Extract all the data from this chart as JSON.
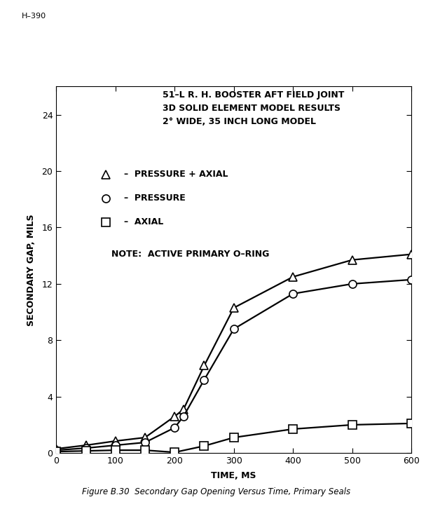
{
  "title_lines": [
    "51–L R. H. BOOSTER AFT FIELD JOINT",
    "3D SOLID ELEMENT MODEL RESULTS",
    "2° WIDE, 35 INCH LONG MODEL"
  ],
  "note": "NOTE:  ACTIVE PRIMARY O–RING",
  "xlabel": "TIME, MS",
  "ylabel": "SECONDARY GAP, MILS",
  "xlim": [
    0,
    600
  ],
  "ylim": [
    0,
    26
  ],
  "xticks": [
    0,
    100,
    200,
    300,
    400,
    500,
    600
  ],
  "yticks": [
    0,
    4,
    8,
    12,
    16,
    20,
    24
  ],
  "header": "H–390",
  "figure_caption": "Figure B.30  Secondary Gap Opening Versus Time, Primary Seals",
  "series": [
    {
      "label": "–  PRESSURE + AXIAL",
      "marker": "triangle",
      "x": [
        0,
        50,
        100,
        150,
        200,
        215,
        250,
        300,
        400,
        500,
        600
      ],
      "y": [
        0.3,
        0.55,
        0.85,
        1.1,
        2.6,
        3.1,
        6.2,
        10.3,
        12.5,
        13.7,
        14.1
      ]
    },
    {
      "label": "–  PRESSURE",
      "marker": "circle",
      "x": [
        0,
        50,
        100,
        150,
        200,
        215,
        250,
        300,
        400,
        500,
        600
      ],
      "y": [
        0.2,
        0.35,
        0.55,
        0.75,
        1.8,
        2.6,
        5.2,
        8.8,
        11.3,
        12.0,
        12.3
      ]
    },
    {
      "label": "–  AXIAL",
      "marker": "square",
      "x": [
        0,
        50,
        100,
        150,
        200,
        250,
        300,
        400,
        500,
        600
      ],
      "y": [
        0.1,
        0.15,
        0.2,
        0.2,
        0.05,
        0.5,
        1.1,
        1.7,
        2.0,
        2.1
      ]
    }
  ],
  "line_color": "black",
  "background_color": "white",
  "marker_size": 8,
  "linewidth": 1.6,
  "fontsize_title": 9,
  "fontsize_axis_label": 9,
  "fontsize_tick": 9,
  "fontsize_legend": 9,
  "fontsize_note": 9,
  "fontsize_caption": 8.5,
  "fontsize_header": 8
}
